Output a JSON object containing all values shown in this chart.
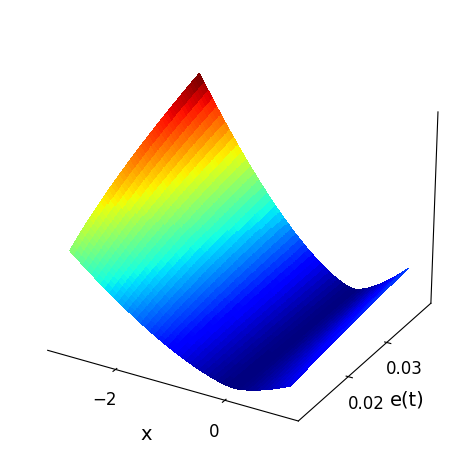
{
  "x_range": [
    -3,
    1
  ],
  "t_range": [
    0.01,
    0.04
  ],
  "x_ticks": [
    -2,
    0
  ],
  "t_ticks": [
    0.02,
    0.03
  ],
  "x_label": "x",
  "t_label": "e(t)",
  "colormap": "jet",
  "elev": 25,
  "azim": -60,
  "figsize": [
    4.74,
    4.74
  ],
  "dpi": 100,
  "background_color": "#ffffff"
}
